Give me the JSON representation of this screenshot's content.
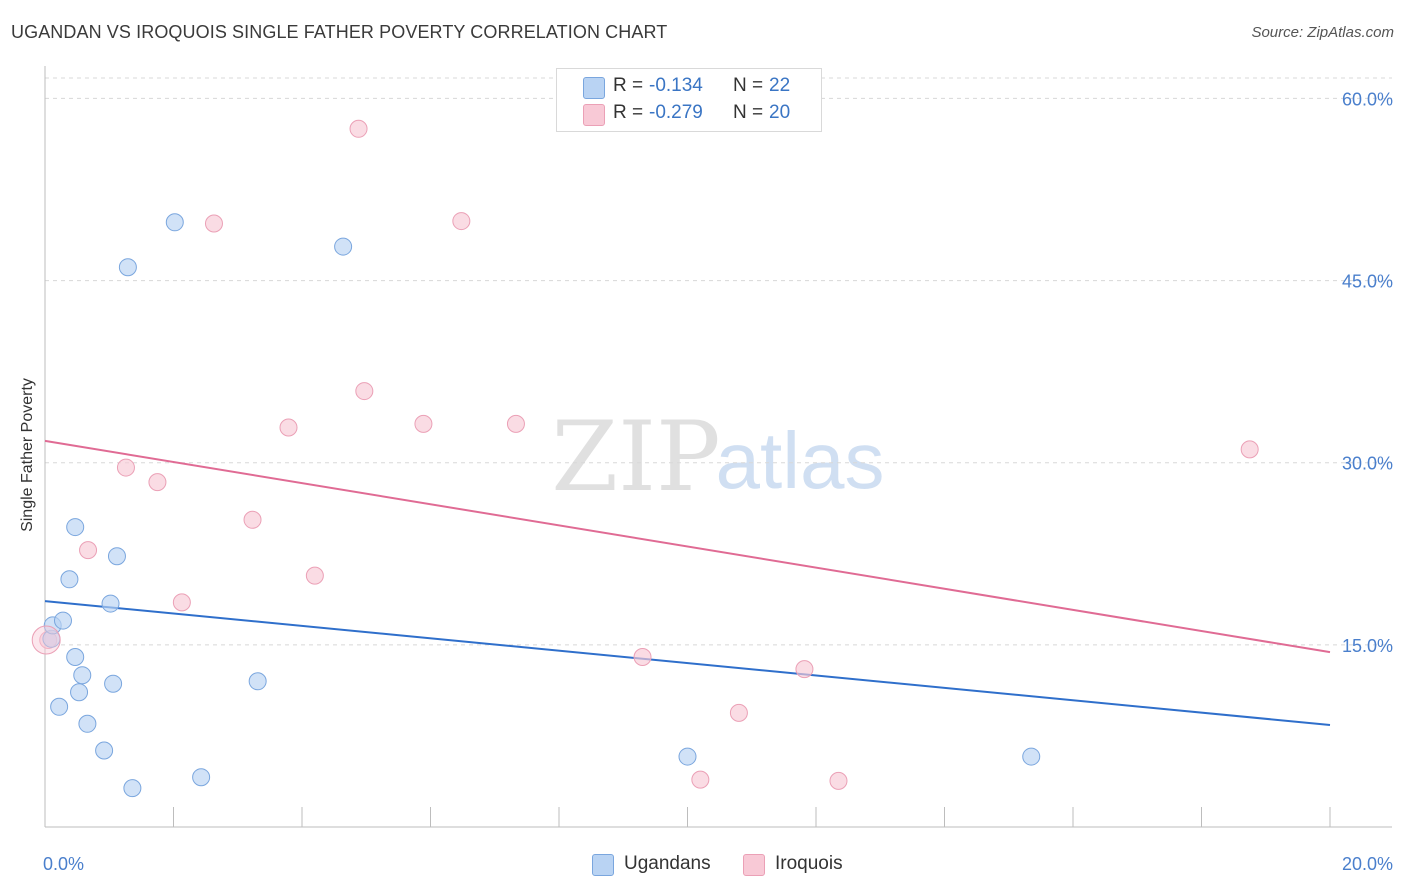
{
  "title": "UGANDAN VS IROQUOIS SINGLE FATHER POVERTY CORRELATION CHART",
  "source": "Source: ZipAtlas.com",
  "watermark": {
    "zip": "ZIP",
    "atlas": "atlas"
  },
  "colors": {
    "blue_fill": "#b9d3f3",
    "blue_stroke": "#7aa6de",
    "blue_line": "#2f6fcb",
    "pink_fill": "#f8c9d6",
    "pink_stroke": "#eba0b6",
    "pink_line": "#e06b94",
    "axis_text": "#4a7fcc",
    "grid": "#d8d8d8"
  },
  "legend": {
    "r_label": "R =",
    "n_label": "N =",
    "rows": [
      {
        "series": "Ugandans",
        "r": "-0.134",
        "n": "22"
      },
      {
        "series": "Iroquois",
        "r": "-0.279",
        "n": "20"
      }
    ]
  },
  "chart_data": {
    "type": "scatter",
    "title": "UGANDAN VS IROQUOIS SINGLE FATHER POVERTY CORRELATION CHART",
    "xlabel": "",
    "ylabel": "Single Father Poverty",
    "xlim": [
      0,
      20
    ],
    "ylim": [
      0,
      63
    ],
    "x_tick_labels": [
      "0.0%",
      "20.0%"
    ],
    "y_ticks": [
      15,
      30,
      45,
      60
    ],
    "y_tick_labels": [
      "15.0%",
      "30.0%",
      "45.0%",
      "60.0%"
    ],
    "grid": true,
    "legend_position": "bottom-center",
    "series": [
      {
        "name": "Ugandans",
        "r": -0.134,
        "n": 22,
        "points": [
          [
            0.1,
            15.5
          ],
          [
            0.12,
            16.6
          ],
          [
            0.28,
            17.0
          ],
          [
            0.38,
            20.4
          ],
          [
            0.47,
            24.7
          ],
          [
            0.47,
            14.0
          ],
          [
            0.58,
            12.5
          ],
          [
            0.53,
            11.1
          ],
          [
            0.22,
            9.9
          ],
          [
            0.66,
            8.5
          ],
          [
            0.92,
            6.3
          ],
          [
            1.02,
            18.4
          ],
          [
            1.06,
            11.8
          ],
          [
            1.12,
            22.3
          ],
          [
            1.36,
            3.2
          ],
          [
            2.02,
            49.8
          ],
          [
            1.29,
            46.1
          ],
          [
            2.43,
            4.1
          ],
          [
            3.31,
            12.0
          ],
          [
            4.64,
            47.8
          ],
          [
            10.0,
            5.8
          ],
          [
            15.35,
            5.8
          ]
        ],
        "trend": {
          "x0": 0,
          "y0": 18.6,
          "x1": 20,
          "y1": 8.4
        }
      },
      {
        "name": "Iroquois",
        "r": -0.279,
        "n": 20,
        "points": [
          [
            0.05,
            15.4
          ],
          [
            0.67,
            22.8
          ],
          [
            1.26,
            29.6
          ],
          [
            1.75,
            28.4
          ],
          [
            2.13,
            18.5
          ],
          [
            2.63,
            49.7
          ],
          [
            3.23,
            25.3
          ],
          [
            3.79,
            32.9
          ],
          [
            4.2,
            20.7
          ],
          [
            4.88,
            57.5
          ],
          [
            4.97,
            35.9
          ],
          [
            5.89,
            33.2
          ],
          [
            6.48,
            49.9
          ],
          [
            7.33,
            33.2
          ],
          [
            9.3,
            14.0
          ],
          [
            10.2,
            3.9
          ],
          [
            10.8,
            9.4
          ],
          [
            11.82,
            13.0
          ],
          [
            12.35,
            3.8
          ],
          [
            18.75,
            31.1
          ]
        ],
        "trend": {
          "x0": 0,
          "y0": 31.8,
          "x1": 20,
          "y1": 14.4
        }
      }
    ]
  }
}
